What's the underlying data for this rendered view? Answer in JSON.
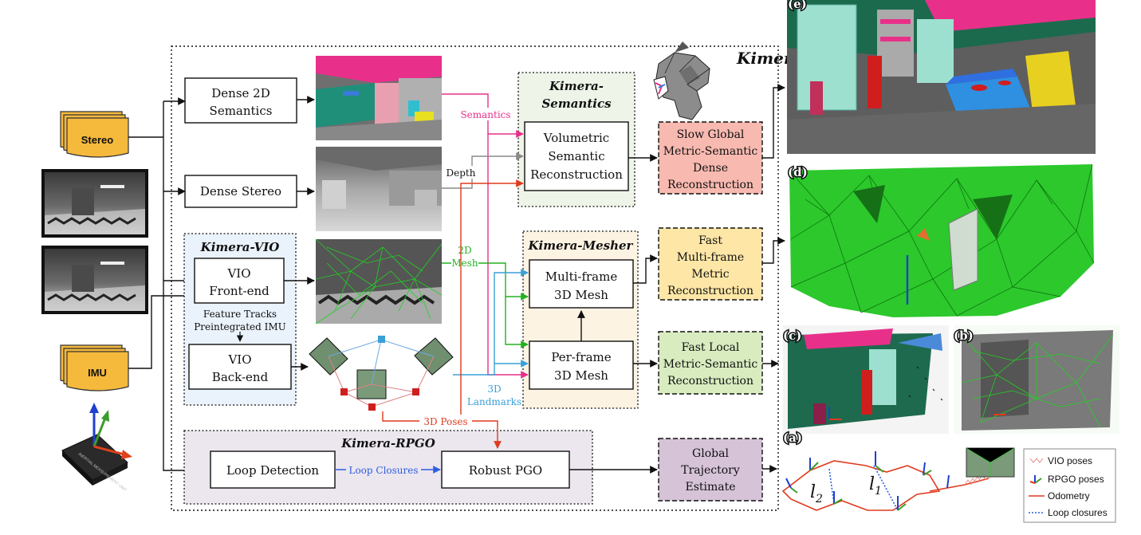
{
  "title": "Kimera",
  "inputs": {
    "stereo": "Stereo",
    "imu": "IMU",
    "imu_chip_text": "INERTIAL MEASUREMENT UNIT"
  },
  "modules": {
    "semantics_title_1": "Kimera-",
    "semantics_title_2": "Semantics",
    "mesher_title": "Kimera-Mesher",
    "vio_title": "Kimera-VIO",
    "rpgo_title": "Kimera-RPGO"
  },
  "blocks": {
    "dense_2d_semantics": [
      "Dense 2D",
      "Semantics"
    ],
    "dense_stereo": "Dense Stereo",
    "vio_frontend": [
      "VIO",
      "Front-end"
    ],
    "vio_backend": [
      "VIO",
      "Back-end"
    ],
    "volumetric": [
      "Volumetric",
      "Semantic",
      "Reconstruction"
    ],
    "multi_frame_mesh": [
      "Multi-frame",
      "3D Mesh"
    ],
    "per_frame_mesh": [
      "Per-frame",
      "3D Mesh"
    ],
    "loop_detection": "Loop Detection",
    "robust_pgo": "Robust PGO"
  },
  "outputs": {
    "slow_global": [
      "Slow Global",
      "Metric-Semantic",
      "Dense",
      "Reconstruction"
    ],
    "fast_multi": [
      "Fast",
      "Multi-frame",
      "Metric",
      "Reconstruction"
    ],
    "fast_local": [
      "Fast Local",
      "Metric-Semantic",
      "Reconstruction"
    ],
    "global_traj": [
      "Global",
      "Trajectory",
      "Estimate"
    ]
  },
  "edge_labels": {
    "semantics": "Semantics",
    "depth": "Depth",
    "mesh_2d": [
      "2D",
      "Mesh"
    ],
    "landmarks_3d": [
      "3D",
      "Landmarks"
    ],
    "poses_3d": "3D Poses",
    "loop_closures": "Loop Closures",
    "feature_tracks": "Feature Tracks",
    "preintegrated_imu": "Preintegrated IMU"
  },
  "panels": {
    "e": "(e)",
    "d": "(d)",
    "c": "(c)",
    "b": "(b)",
    "a": "(a)"
  },
  "trajectory_labels": {
    "l2": "l",
    "l2_sub": "2",
    "l1": "l",
    "l1_sub": "1"
  },
  "legend": [
    "VIO poses",
    "RPGO poses",
    "Odometry",
    "Loop closures"
  ],
  "colors": {
    "semantics_arrow": "#e8308a",
    "depth_arrow": "#8a8a8a",
    "mesh_arrow": "#22b022",
    "landmarks_arrow": "#3aa0d8",
    "poses_arrow": "#e03a1e",
    "loop_arrow": "#2f5fe0",
    "stereo_fill": "#f5b93c",
    "semantics_bg": "#eef4e8",
    "mesher_bg": "#fdf3e3",
    "vio_bg": "#eaf2fb",
    "rpgo_bg": "#ece6ef",
    "slow_global_fill": "#f8b9b0",
    "fast_multi_fill": "#fde6a6",
    "fast_local_fill": "#d8ecc0",
    "global_traj_fill": "#d6c3d8"
  }
}
